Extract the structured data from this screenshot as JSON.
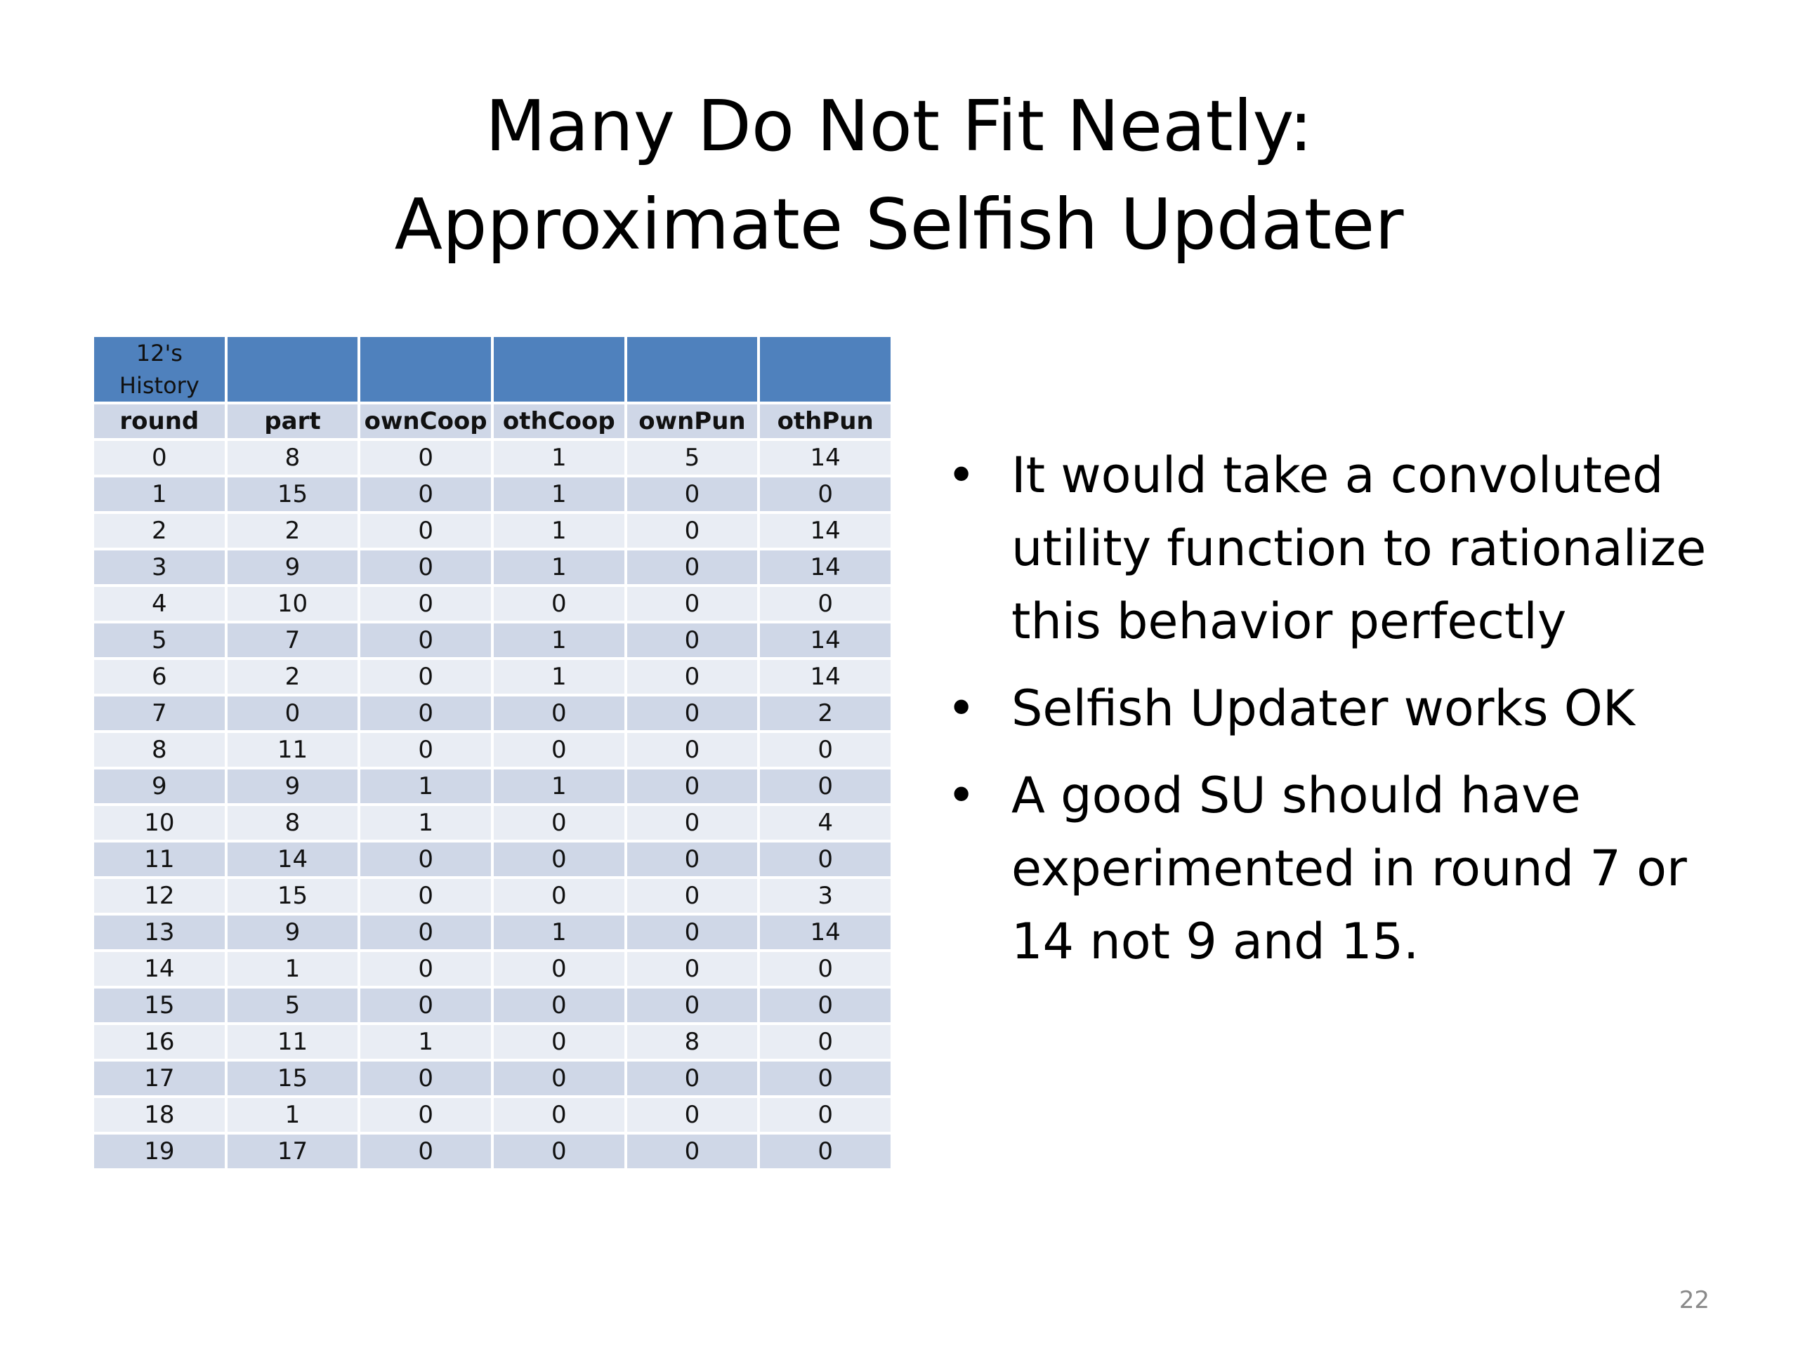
{
  "title": {
    "line1": "Many Do Not Fit Neatly:",
    "line2": "Approximate Selfish Updater"
  },
  "table": {
    "caption_line1": "12's",
    "caption_line2": "History",
    "columns": [
      "round",
      "part",
      "ownCoop",
      "othCoop",
      "ownPun",
      "othPun"
    ],
    "rows": [
      [
        "0",
        "8",
        "0",
        "1",
        "5",
        "14"
      ],
      [
        "1",
        "15",
        "0",
        "1",
        "0",
        "0"
      ],
      [
        "2",
        "2",
        "0",
        "1",
        "0",
        "14"
      ],
      [
        "3",
        "9",
        "0",
        "1",
        "0",
        "14"
      ],
      [
        "4",
        "10",
        "0",
        "0",
        "0",
        "0"
      ],
      [
        "5",
        "7",
        "0",
        "1",
        "0",
        "14"
      ],
      [
        "6",
        "2",
        "0",
        "1",
        "0",
        "14"
      ],
      [
        "7",
        "0",
        "0",
        "0",
        "0",
        "2"
      ],
      [
        "8",
        "11",
        "0",
        "0",
        "0",
        "0"
      ],
      [
        "9",
        "9",
        "1",
        "1",
        "0",
        "0"
      ],
      [
        "10",
        "8",
        "1",
        "0",
        "0",
        "4"
      ],
      [
        "11",
        "14",
        "0",
        "0",
        "0",
        "0"
      ],
      [
        "12",
        "15",
        "0",
        "0",
        "0",
        "3"
      ],
      [
        "13",
        "9",
        "0",
        "1",
        "0",
        "14"
      ],
      [
        "14",
        "1",
        "0",
        "0",
        "0",
        "0"
      ],
      [
        "15",
        "5",
        "0",
        "0",
        "0",
        "0"
      ],
      [
        "16",
        "11",
        "1",
        "0",
        "8",
        "0"
      ],
      [
        "17",
        "15",
        "0",
        "0",
        "0",
        "0"
      ],
      [
        "18",
        "1",
        "0",
        "0",
        "0",
        "0"
      ],
      [
        "19",
        "17",
        "0",
        "0",
        "0",
        "0"
      ]
    ]
  },
  "bullets": [
    "It would take a convoluted utility function to rationalize this behavior perfectly",
    "Selfish Updater works OK",
    "A good SU should have experimented in round 7 or 14 not 9 and 15."
  ],
  "bullet_symbol": "•",
  "page_number": "22",
  "colors": {
    "header_blue": "#4f81bd",
    "row_dark": "#cfd7e7",
    "row_light": "#e9edf4"
  }
}
